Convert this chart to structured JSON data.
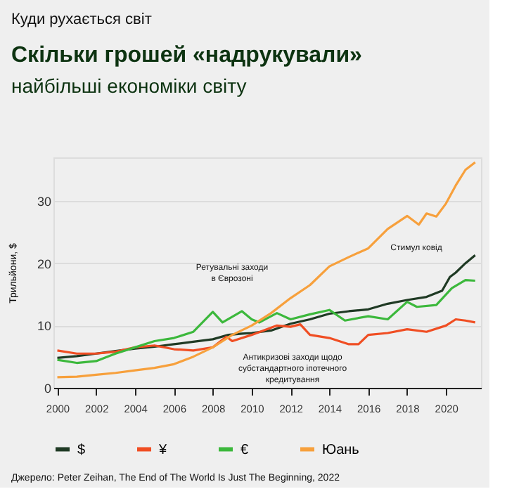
{
  "chart_data": {
    "type": "line",
    "title": "Скільки грошей «надрукували»",
    "subtitle": "найбільші економіки світу",
    "ylabel": "Трильйони, $",
    "xlim": [
      1999.8,
      2021.8
    ],
    "xticks": [
      2000,
      2002,
      2004,
      2006,
      2008,
      2010,
      2012,
      2014,
      2016,
      2018,
      2020
    ],
    "ylim": [
      0,
      37
    ],
    "yticks": [
      0,
      10,
      20,
      30
    ],
    "grid": "y",
    "legend": "bottom",
    "line_style": "solid",
    "marker": "none",
    "series": [
      {
        "name": "$",
        "color": "#1f3a24",
        "x": [
          2000,
          2001,
          2002,
          2003,
          2004,
          2005,
          2006,
          2007,
          2008,
          2008.8,
          2009.5,
          2010,
          2011,
          2012,
          2013,
          2014,
          2015,
          2016,
          2017,
          2018,
          2019,
          2019.8,
          2020.2,
          2020.5,
          2021,
          2021.5
        ],
        "values": [
          4.8,
          5.1,
          5.5,
          5.9,
          6.3,
          6.6,
          7.0,
          7.4,
          7.8,
          8.5,
          8.7,
          8.8,
          9.2,
          10.3,
          11.0,
          11.9,
          12.3,
          12.6,
          13.5,
          14.1,
          14.6,
          15.6,
          17.8,
          18.5,
          20.0,
          21.3
        ]
      },
      {
        "name": "¥",
        "color": "#f04e23",
        "x": [
          2000,
          2001,
          2002,
          2003,
          2004,
          2005,
          2006,
          2007,
          2008,
          2008.7,
          2009,
          2010,
          2011.3,
          2012,
          2012.5,
          2013,
          2014,
          2015,
          2015.5,
          2016,
          2017,
          2018,
          2019,
          2020,
          2020.5,
          2021,
          2021.5
        ],
        "values": [
          6.0,
          5.5,
          5.5,
          5.8,
          6.5,
          6.8,
          6.2,
          6.0,
          6.5,
          8.2,
          7.5,
          8.5,
          10.0,
          9.8,
          10.2,
          8.5,
          8.0,
          7.0,
          7.0,
          8.5,
          8.8,
          9.4,
          9.0,
          10.0,
          11.0,
          10.8,
          10.5
        ]
      },
      {
        "name": "€",
        "color": "#3cb83c",
        "x": [
          2000,
          2001,
          2002,
          2003,
          2004,
          2005,
          2006,
          2007,
          2008,
          2008.5,
          2009.5,
          2010,
          2010.4,
          2011.3,
          2012,
          2013,
          2014,
          2014.8,
          2016,
          2017,
          2018,
          2018.5,
          2019.5,
          2020.3,
          2021,
          2021.5
        ],
        "values": [
          4.5,
          4.0,
          4.3,
          5.5,
          6.5,
          7.5,
          8.0,
          9.0,
          12.2,
          10.5,
          12.3,
          11.0,
          10.5,
          12.0,
          11.0,
          11.8,
          12.5,
          10.8,
          11.5,
          11.0,
          13.8,
          13.0,
          13.3,
          16.0,
          17.3,
          17.2
        ]
      },
      {
        "name": "Юань",
        "color": "#f7a03c",
        "x": [
          2000,
          2001,
          2002,
          2003,
          2004,
          2005,
          2006,
          2007,
          2008,
          2009,
          2010,
          2011,
          2012,
          2013,
          2014,
          2015,
          2016,
          2017,
          2018,
          2018.6,
          2019,
          2019.5,
          2020,
          2020.5,
          2021,
          2021.5
        ],
        "values": [
          1.7,
          1.8,
          2.1,
          2.4,
          2.8,
          3.2,
          3.8,
          5.0,
          6.5,
          8.5,
          10.0,
          12.0,
          14.4,
          16.5,
          19.5,
          21.0,
          22.4,
          25.5,
          27.6,
          26.2,
          28.0,
          27.5,
          29.6,
          32.5,
          35.0,
          36.2
        ]
      }
    ],
    "annotations": [
      "Ретувальні заходи\nв Єврозоні",
      "Антикризові заходи щодо\nсубстандартного іпотечного\nкредитування",
      "Стимул ковід",
      "Куди рухається світ",
      "Джерело: Peter Zeihan, The End of The World Is Just The Beginning, 2022"
    ]
  }
}
